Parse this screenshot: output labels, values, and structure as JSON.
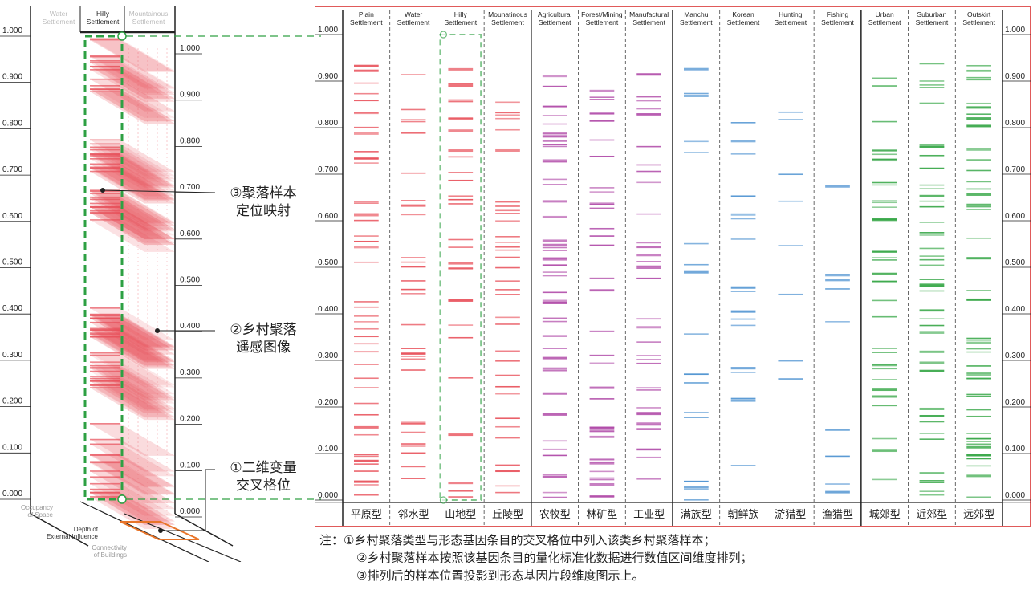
{
  "left": {
    "col_heads": [
      "Water\nSettlement",
      "Hilly\nSettlement",
      "Mountainous\nSettlement"
    ],
    "y_ticks": [
      "1.000",
      "0.900",
      "0.800",
      "0.700",
      "0.600",
      "0.500",
      "0.400",
      "0.300",
      "0.200",
      "0.100",
      "0.000"
    ],
    "y_ticks_right": [
      "1.000",
      "0.900",
      "0.800",
      "0.700",
      "0.600",
      "0.500",
      "0.400",
      "0.300",
      "0.200",
      "0.100",
      "0.000"
    ],
    "axis_names": [
      "Occupancy\nof Space",
      "Depth of\nExternal Influence",
      "Connectivity\nof Buildings"
    ],
    "callouts": [
      "③聚落样本\n定位映射",
      "②乡村聚落\n遥感图像",
      "①二维变量\n交叉格位"
    ]
  },
  "right": {
    "y_ticks": [
      "1.000",
      "0.900",
      "0.800",
      "0.700",
      "0.600",
      "0.500",
      "0.400",
      "0.300",
      "0.200",
      "0.100",
      "0.000"
    ],
    "columns": [
      {
        "en": "Plain\nSettlement",
        "zh": "平原型",
        "color": "#e8505a"
      },
      {
        "en": "Water\nSettlement",
        "zh": "邻水型",
        "color": "#e8505a"
      },
      {
        "en": "Hilly\nSettlement",
        "zh": "山地型",
        "color": "#e8505a"
      },
      {
        "en": "Mounatinous\nSettlement",
        "zh": "丘陵型",
        "color": "#e8505a"
      },
      {
        "en": "Agricultural\nSettlement",
        "zh": "农牧型",
        "color": "#b04aa8"
      },
      {
        "en": "Forest/Mining\nSettlement",
        "zh": "林矿型",
        "color": "#b04aa8"
      },
      {
        "en": "Manufactural\nSettlement",
        "zh": "工业型",
        "color": "#b04aa8"
      },
      {
        "en": "Manchu\nSettlement",
        "zh": "满族型",
        "color": "#4a90d0"
      },
      {
        "en": "Korean\nSettlement",
        "zh": "朝鲜族",
        "color": "#4a90d0"
      },
      {
        "en": "Hunting\nSettlement",
        "zh": "游猎型",
        "color": "#4a90d0"
      },
      {
        "en": "Fishing\nSettlement",
        "zh": "渔猎型",
        "color": "#4a90d0"
      },
      {
        "en": "Urban\nSettlement",
        "zh": "城郊型",
        "color": "#3aa84a"
      },
      {
        "en": "Suburban\nSettlement",
        "zh": "近郊型",
        "color": "#3aa84a"
      },
      {
        "en": "Outskirt\nSettlement",
        "zh": "远郊型",
        "color": "#3aa84a"
      }
    ]
  },
  "notes": [
    "注：①乡村聚落类型与形态基因条目的交叉格位中列入该类乡村聚落样本；",
    "②乡村聚落样本按照该基因条目的量化标准化数据进行数值区间维度排列；",
    "③排列后的样本位置投影到形态基因片段维度图示上。"
  ],
  "colors": {
    "red": "#e8505a",
    "purple": "#b04aa8",
    "blue": "#4a90d0",
    "green": "#3aa84a",
    "frame": "#e05a5a",
    "dash_green": "#2ea043"
  }
}
